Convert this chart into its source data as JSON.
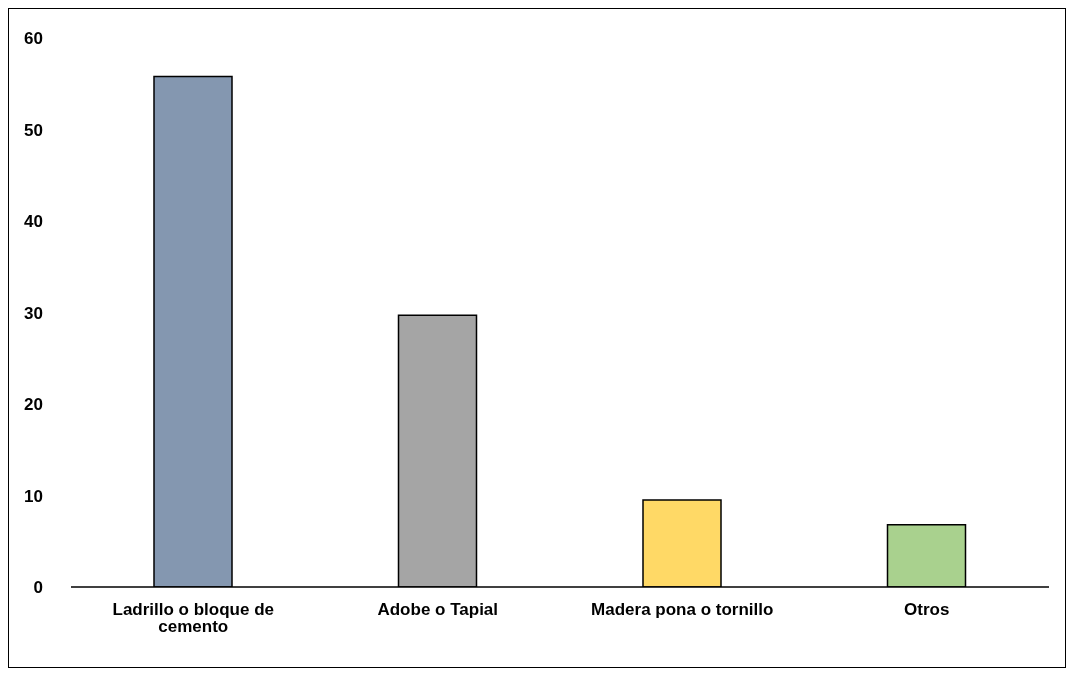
{
  "chart_data": {
    "type": "bar",
    "categories": [
      "Ladrillo o bloque de cemento",
      "Adobe o Tapial",
      "Madera pona o tornillo",
      "Otros"
    ],
    "values": [
      55.8,
      29.7,
      9.5,
      6.8
    ],
    "colors": [
      "#8497b0",
      "#a5a5a5",
      "#ffd966",
      "#a9d18e"
    ],
    "ylim": [
      0,
      60
    ],
    "yticks": [
      0,
      10,
      20,
      30,
      40,
      50,
      60
    ],
    "grid": false,
    "legend": false
  }
}
